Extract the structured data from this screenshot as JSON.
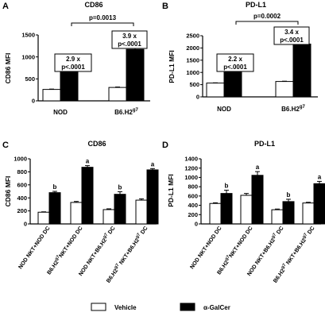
{
  "colors": {
    "vehicle": "#ffffff",
    "galcer": "#000000",
    "axis": "#000000"
  },
  "legend": [
    {
      "name": "Vehicle",
      "color": "#ffffff"
    },
    {
      "name": "α-GalCer",
      "color": "#000000"
    }
  ],
  "chart_data": [
    {
      "panel": "A",
      "type": "bar",
      "title": "CD86",
      "ylabel": "CD86 MFI",
      "ylim": [
        0,
        1500
      ],
      "yticks": [
        0,
        500,
        1000,
        1500
      ],
      "categories": [
        "NOD",
        "B6.H2g7"
      ],
      "category_labels": [
        {
          "main": "NOD",
          "sup": ""
        },
        {
          "main": "B6.H2",
          "sup": "g7"
        }
      ],
      "series": [
        {
          "name": "Vehicle",
          "values": [
            260,
            305
          ],
          "errors": [
            8,
            10
          ]
        },
        {
          "name": "α-GalCer",
          "values": [
            770,
            1170
          ],
          "errors": [
            15,
            25
          ]
        }
      ],
      "annotations": [
        {
          "text": [
            "2.9 x",
            "p<.0001"
          ],
          "category": 0
        },
        {
          "text": [
            "3.9 x",
            "p<.0001"
          ],
          "category": 1
        }
      ],
      "comparison": "p=0.0013"
    },
    {
      "panel": "B",
      "type": "bar",
      "title": "PD-L1",
      "ylabel": "PD-L1 MFI",
      "ylim": [
        0,
        2500
      ],
      "yticks": [
        0,
        500,
        1000,
        1500,
        2000,
        2500
      ],
      "categories": [
        "NOD",
        "B6.H2g7"
      ],
      "category_labels": [
        {
          "main": "NOD",
          "sup": ""
        },
        {
          "main": "B6.H2",
          "sup": "g7"
        }
      ],
      "series": [
        {
          "name": "Vehicle",
          "values": [
            565,
            630
          ],
          "errors": [
            10,
            12
          ]
        },
        {
          "name": "α-GalCer",
          "values": [
            1210,
            2160
          ],
          "errors": [
            25,
            40
          ]
        }
      ],
      "annotations": [
        {
          "text": [
            "2.2 x",
            "p<.0001"
          ],
          "category": 0
        },
        {
          "text": [
            "3.4 x",
            "p<.0001"
          ],
          "category": 1
        }
      ],
      "comparison": "p=0.0002"
    },
    {
      "panel": "C",
      "type": "bar",
      "title": "CD86",
      "ylabel": "CD86 MFI",
      "ylim": [
        0,
        1000
      ],
      "yticks": [
        0,
        200,
        400,
        600,
        800,
        1000
      ],
      "categories": [
        "NOD NKT+NOD DC",
        "B6.H2g7NKT+NOD DC",
        "NOD NKT+B6.H2g7 DC",
        "B6.H2g7 NKT+B6.H2g7 DC"
      ],
      "category_labels": [
        {
          "parts": [
            [
              "NOD NKT+NOD DC",
              false
            ]
          ]
        },
        {
          "parts": [
            [
              "B6.H2",
              false
            ],
            [
              "g7",
              true
            ],
            [
              "NKT+NOD DC",
              false
            ]
          ]
        },
        {
          "parts": [
            [
              "NOD NKT+B6.H2",
              false
            ],
            [
              "g7",
              true
            ],
            [
              " DC",
              false
            ]
          ]
        },
        {
          "parts": [
            [
              "B6.H2",
              false
            ],
            [
              "g7",
              true
            ],
            [
              " NKT+B6.H2",
              false
            ],
            [
              "g7",
              true
            ],
            [
              " DC",
              false
            ]
          ]
        }
      ],
      "series": [
        {
          "name": "Vehicle",
          "values": [
            180,
            330,
            220,
            365
          ],
          "errors": [
            6,
            15,
            12,
            20
          ]
        },
        {
          "name": "α-GalCer",
          "values": [
            480,
            870,
            455,
            830
          ],
          "errors": [
            20,
            25,
            40,
            20
          ]
        }
      ],
      "significance": [
        "b",
        "a",
        "b",
        "a"
      ]
    },
    {
      "panel": "D",
      "type": "bar",
      "title": "PD-L1",
      "ylabel": "PD-L1 MFI",
      "ylim": [
        0,
        1400
      ],
      "yticks": [
        0,
        200,
        400,
        600,
        800,
        1000,
        1200,
        1400
      ],
      "categories": [
        "NOD NKT+NOD DC",
        "B6.H2g7NKT+NOD DC",
        "NOD NKT+B6.H2g7 DC",
        "B6.H2g7 NKT+B6.H2g7 DC"
      ],
      "category_labels": [
        {
          "parts": [
            [
              "NOD NKT+NOD DC",
              false
            ]
          ]
        },
        {
          "parts": [
            [
              "B6.H2",
              false
            ],
            [
              "g7",
              true
            ],
            [
              "NKT+NOD DC",
              false
            ]
          ]
        },
        {
          "parts": [
            [
              "NOD NKT+B6.H2",
              false
            ],
            [
              "g7",
              true
            ],
            [
              " DC",
              false
            ]
          ]
        },
        {
          "parts": [
            [
              "B6.H2",
              false
            ],
            [
              "g7",
              true
            ],
            [
              " NKT+B6.H2",
              false
            ],
            [
              "g7",
              true
            ],
            [
              " DC",
              false
            ]
          ]
        }
      ],
      "series": [
        {
          "name": "Vehicle",
          "values": [
            440,
            615,
            305,
            450
          ],
          "errors": [
            15,
            40,
            15,
            15
          ]
        },
        {
          "name": "α-GalCer",
          "values": [
            655,
            1045,
            480,
            865
          ],
          "errors": [
            70,
            80,
            50,
            50
          ]
        }
      ],
      "significance": [
        "b",
        "a",
        "b",
        "a"
      ]
    }
  ]
}
